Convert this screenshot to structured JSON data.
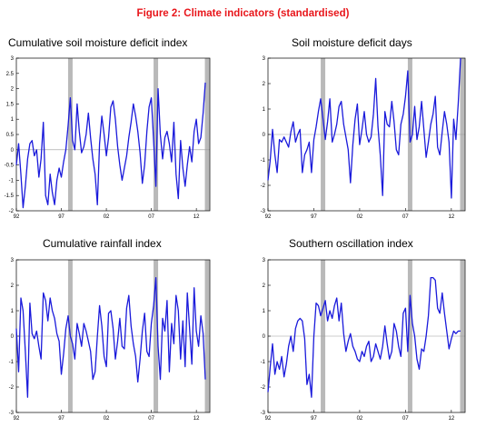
{
  "figure_title": "Figure 2: Climate indicators (standardised)",
  "chart_data": [
    {
      "type": "line",
      "title": "Cumulative soil moisture deficit index",
      "ylim": [
        -2,
        3
      ],
      "yticks": [
        "3",
        "2.5",
        "2",
        "1.5",
        "1",
        "0.5",
        "0",
        "-0.5",
        "-1",
        "-1.5",
        "-2"
      ],
      "xlim": [
        1992,
        2013.5
      ],
      "xticks": [
        "92",
        "97",
        "02",
        "07",
        "12"
      ],
      "grid": false,
      "zero_line": true,
      "shaded_bands": [
        1998.0,
        2007.5,
        2013.2
      ],
      "line_color": "#1a1adb",
      "series": [
        {
          "name": "",
          "x": [
            1992.0,
            1992.25,
            1992.5,
            1992.75,
            1993.0,
            1993.25,
            1993.5,
            1993.75,
            1994.0,
            1994.25,
            1994.5,
            1994.75,
            1995.0,
            1995.25,
            1995.5,
            1995.75,
            1996.0,
            1996.25,
            1996.5,
            1996.75,
            1997.0,
            1997.25,
            1997.5,
            1997.75,
            1998.0,
            1998.25,
            1998.5,
            1998.75,
            1999.0,
            1999.25,
            1999.5,
            1999.75,
            2000.0,
            2000.25,
            2000.5,
            2000.75,
            2001.0,
            2001.25,
            2001.5,
            2001.75,
            2002.0,
            2002.25,
            2002.5,
            2002.75,
            2003.0,
            2003.25,
            2003.5,
            2003.75,
            2004.0,
            2004.25,
            2004.5,
            2004.75,
            2005.0,
            2005.25,
            2005.5,
            2005.75,
            2006.0,
            2006.25,
            2006.5,
            2006.75,
            2007.0,
            2007.25,
            2007.5,
            2007.75,
            2008.0,
            2008.25,
            2008.5,
            2008.75,
            2009.0,
            2009.25,
            2009.5,
            2009.75,
            2010.0,
            2010.25,
            2010.5,
            2010.75,
            2011.0,
            2011.25,
            2011.5,
            2011.75,
            2012.0,
            2012.25,
            2012.5,
            2012.75,
            2013.0
          ],
          "values": [
            -0.5,
            0.2,
            -0.8,
            -1.9,
            -1.2,
            -0.3,
            0.2,
            0.3,
            -0.2,
            0.0,
            -0.9,
            -0.3,
            0.9,
            -1.5,
            -1.8,
            -0.8,
            -1.4,
            -1.8,
            -1.0,
            -0.6,
            -0.9,
            -0.4,
            0.0,
            0.8,
            1.7,
            0.3,
            0.0,
            1.5,
            0.6,
            -0.1,
            0.1,
            0.5,
            1.2,
            0.4,
            -0.3,
            -0.8,
            -1.8,
            0.2,
            1.1,
            0.5,
            -0.2,
            0.4,
            1.4,
            1.6,
            1.0,
            0.1,
            -0.5,
            -1.0,
            -0.6,
            -0.2,
            0.4,
            0.9,
            1.5,
            1.1,
            0.6,
            -0.1,
            -1.1,
            -0.5,
            0.6,
            1.4,
            1.7,
            0.3,
            -1.2,
            2.0,
            0.5,
            -0.3,
            0.4,
            0.6,
            0.2,
            -0.4,
            0.9,
            -0.8,
            -1.6,
            0.3,
            -0.6,
            -1.2,
            -0.5,
            0.1,
            -0.4,
            0.6,
            1.0,
            0.2,
            0.4,
            1.2,
            2.2
          ]
        }
      ]
    },
    {
      "type": "line",
      "title": "Soil moisture deficit days",
      "ylim": [
        -3,
        3
      ],
      "yticks": [
        "3",
        "2",
        "1",
        "0",
        "-1",
        "-2",
        "-3"
      ],
      "xlim": [
        1992,
        2013.5
      ],
      "xticks": [
        "92",
        "97",
        "02",
        "07",
        "12"
      ],
      "grid": false,
      "zero_line": true,
      "shaded_bands": [
        1998.0,
        2007.5,
        2013.2
      ],
      "line_color": "#1a1adb",
      "series": [
        {
          "name": "",
          "x": [
            1992.0,
            1992.25,
            1992.5,
            1992.75,
            1993.0,
            1993.25,
            1993.5,
            1993.75,
            1994.0,
            1994.25,
            1994.5,
            1994.75,
            1995.0,
            1995.25,
            1995.5,
            1995.75,
            1996.0,
            1996.25,
            1996.5,
            1996.75,
            1997.0,
            1997.25,
            1997.5,
            1997.75,
            1998.0,
            1998.25,
            1998.5,
            1998.75,
            1999.0,
            1999.25,
            1999.5,
            1999.75,
            2000.0,
            2000.25,
            2000.5,
            2000.75,
            2001.0,
            2001.25,
            2001.5,
            2001.75,
            2002.0,
            2002.25,
            2002.5,
            2002.75,
            2003.0,
            2003.25,
            2003.5,
            2003.75,
            2004.0,
            2004.25,
            2004.5,
            2004.75,
            2005.0,
            2005.25,
            2005.5,
            2005.75,
            2006.0,
            2006.25,
            2006.5,
            2006.75,
            2007.0,
            2007.25,
            2007.5,
            2007.75,
            2008.0,
            2008.25,
            2008.5,
            2008.75,
            2009.0,
            2009.25,
            2009.5,
            2009.75,
            2010.0,
            2010.25,
            2010.5,
            2010.75,
            2011.0,
            2011.25,
            2011.5,
            2011.75,
            2012.0,
            2012.25,
            2012.5,
            2012.75,
            2013.0
          ],
          "values": [
            -1.8,
            -1.0,
            0.2,
            -0.8,
            -1.5,
            -0.2,
            -0.3,
            -0.1,
            -0.3,
            -0.5,
            0.1,
            0.5,
            -0.3,
            0.0,
            0.2,
            -1.5,
            -0.8,
            -0.6,
            -0.3,
            -1.5,
            -0.2,
            0.3,
            0.9,
            1.4,
            0.6,
            -0.2,
            0.5,
            1.4,
            -0.3,
            0.0,
            0.4,
            1.1,
            1.3,
            0.4,
            -0.1,
            -0.6,
            -1.9,
            -0.4,
            0.6,
            1.2,
            -0.4,
            0.2,
            0.9,
            0.0,
            -0.3,
            -0.1,
            0.8,
            2.2,
            0.3,
            -0.8,
            -2.4,
            0.9,
            0.4,
            0.3,
            1.3,
            0.5,
            -0.6,
            -0.8,
            0.4,
            0.8,
            1.5,
            2.5,
            -0.3,
            0.0,
            1.1,
            -0.2,
            0.3,
            1.3,
            0.2,
            -0.9,
            -0.3,
            0.4,
            0.8,
            1.5,
            -0.5,
            -0.8,
            0.1,
            0.9,
            0.4,
            -0.3,
            -2.5,
            0.6,
            -0.2,
            1.2,
            3.0
          ]
        }
      ]
    },
    {
      "type": "line",
      "title": "Cumulative rainfall index",
      "ylim": [
        -3,
        3
      ],
      "yticks": [
        "3",
        "2",
        "1",
        "0",
        "-1",
        "-2",
        "-3"
      ],
      "xlim": [
        1992,
        2013.5
      ],
      "xticks": [
        "92",
        "97",
        "02",
        "07",
        "12"
      ],
      "grid": false,
      "zero_line": true,
      "shaded_bands": [
        1998.0,
        2007.5,
        2013.2
      ],
      "line_color": "#1a1adb",
      "series": [
        {
          "name": "",
          "x": [
            1992.0,
            1992.25,
            1992.5,
            1992.75,
            1993.0,
            1993.25,
            1993.5,
            1993.75,
            1994.0,
            1994.25,
            1994.5,
            1994.75,
            1995.0,
            1995.25,
            1995.5,
            1995.75,
            1996.0,
            1996.25,
            1996.5,
            1996.75,
            1997.0,
            1997.25,
            1997.5,
            1997.75,
            1998.0,
            1998.25,
            1998.5,
            1998.75,
            1999.0,
            1999.25,
            1999.5,
            1999.75,
            2000.0,
            2000.25,
            2000.5,
            2000.75,
            2001.0,
            2001.25,
            2001.5,
            2001.75,
            2002.0,
            2002.25,
            2002.5,
            2002.75,
            2003.0,
            2003.25,
            2003.5,
            2003.75,
            2004.0,
            2004.25,
            2004.5,
            2004.75,
            2005.0,
            2005.25,
            2005.5,
            2005.75,
            2006.0,
            2006.25,
            2006.5,
            2006.75,
            2007.0,
            2007.25,
            2007.5,
            2007.75,
            2008.0,
            2008.25,
            2008.5,
            2008.75,
            2009.0,
            2009.25,
            2009.5,
            2009.75,
            2010.0,
            2010.25,
            2010.5,
            2010.75,
            2011.0,
            2011.25,
            2011.5,
            2011.75,
            2012.0,
            2012.25,
            2012.5,
            2012.75,
            2013.0
          ],
          "values": [
            0.3,
            -1.4,
            1.5,
            1.0,
            -0.6,
            -2.4,
            1.3,
            0.1,
            -0.1,
            0.2,
            -0.4,
            -0.9,
            1.7,
            1.4,
            0.6,
            1.5,
            1.0,
            0.7,
            0.1,
            -0.2,
            -1.5,
            -0.7,
            0.3,
            0.8,
            0.0,
            -0.3,
            -0.9,
            0.5,
            0.1,
            -0.4,
            0.5,
            0.2,
            -0.2,
            -0.6,
            -1.7,
            -1.4,
            0.0,
            1.2,
            0.4,
            -0.8,
            -1.2,
            0.9,
            1.0,
            0.3,
            -0.9,
            -0.2,
            0.7,
            -0.4,
            -0.5,
            1.1,
            1.6,
            0.4,
            -0.3,
            -0.8,
            -1.8,
            -0.9,
            0.2,
            0.9,
            -0.6,
            -0.8,
            0.5,
            1.2,
            2.3,
            -0.4,
            -1.7,
            0.7,
            0.2,
            1.4,
            -1.4,
            0.5,
            -0.3,
            1.6,
            1.0,
            -0.9,
            0.6,
            -1.2,
            1.7,
            0.3,
            -1.1,
            1.9,
            0.2,
            -0.4,
            0.8,
            0.1,
            -1.7
          ]
        }
      ]
    },
    {
      "type": "line",
      "title": "Southern oscillation index",
      "ylim": [
        -3,
        3
      ],
      "yticks": [
        "3",
        "2",
        "1",
        "0",
        "-1",
        "-2",
        "-3"
      ],
      "xlim": [
        1992,
        2013.5
      ],
      "xticks": [
        "92",
        "97",
        "02",
        "07",
        "12"
      ],
      "grid": false,
      "zero_line": true,
      "shaded_bands": [
        1998.0,
        2007.5,
        2013.2
      ],
      "line_color": "#1a1adb",
      "series": [
        {
          "name": "",
          "x": [
            1992.0,
            1992.25,
            1992.5,
            1992.75,
            1993.0,
            1993.25,
            1993.5,
            1993.75,
            1994.0,
            1994.25,
            1994.5,
            1994.75,
            1995.0,
            1995.25,
            1995.5,
            1995.75,
            1996.0,
            1996.25,
            1996.5,
            1996.75,
            1997.0,
            1997.25,
            1997.5,
            1997.75,
            1998.0,
            1998.25,
            1998.5,
            1998.75,
            1999.0,
            1999.25,
            1999.5,
            1999.75,
            2000.0,
            2000.25,
            2000.5,
            2000.75,
            2001.0,
            2001.25,
            2001.5,
            2001.75,
            2002.0,
            2002.25,
            2002.5,
            2002.75,
            2003.0,
            2003.25,
            2003.5,
            2003.75,
            2004.0,
            2004.25,
            2004.5,
            2004.75,
            2005.0,
            2005.25,
            2005.5,
            2005.75,
            2006.0,
            2006.25,
            2006.5,
            2006.75,
            2007.0,
            2007.25,
            2007.5,
            2007.75,
            2008.0,
            2008.25,
            2008.5,
            2008.75,
            2009.0,
            2009.25,
            2009.5,
            2009.75,
            2010.0,
            2010.25,
            2010.5,
            2010.75,
            2011.0,
            2011.25,
            2011.5,
            2011.75,
            2012.0,
            2012.25,
            2012.5,
            2012.75,
            2013.0
          ],
          "values": [
            -2.2,
            -1.2,
            -0.3,
            -1.5,
            -1.0,
            -1.3,
            -0.8,
            -1.6,
            -1.1,
            -0.4,
            0.0,
            -0.6,
            0.3,
            0.6,
            0.7,
            0.6,
            -0.1,
            -1.9,
            -1.5,
            -2.4,
            0.0,
            1.3,
            1.2,
            0.8,
            1.1,
            1.4,
            0.6,
            1.0,
            0.7,
            1.2,
            1.5,
            0.6,
            1.3,
            0.1,
            -0.6,
            -0.2,
            0.1,
            -0.4,
            -0.6,
            -0.9,
            -1.0,
            -0.6,
            -0.8,
            -0.4,
            -0.2,
            -1.0,
            -0.8,
            -0.3,
            -0.6,
            -0.9,
            -0.4,
            0.4,
            -0.3,
            -0.9,
            -0.6,
            0.5,
            0.2,
            -0.4,
            -0.8,
            0.9,
            1.1,
            -0.6,
            1.6,
            0.5,
            0.0,
            -0.9,
            -1.3,
            -0.5,
            -0.6,
            0.0,
            0.8,
            2.3,
            2.3,
            2.2,
            1.1,
            0.9,
            1.7,
            0.9,
            0.2,
            -0.5,
            -0.1,
            0.2,
            0.1,
            0.2,
            0.2
          ]
        }
      ]
    }
  ]
}
